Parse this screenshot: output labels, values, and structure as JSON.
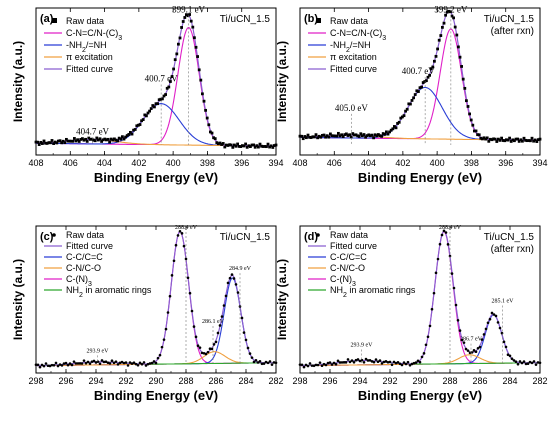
{
  "chart_data": [
    {
      "type": "line",
      "panel_label": "(a)",
      "sample": [
        "Ti/uCN_1.5"
      ],
      "xlabel": "Binding Energy (eV)",
      "ylabel": "Intensity (a.u.)",
      "xlim": [
        408,
        394
      ],
      "xticks": [
        408,
        406,
        404,
        402,
        400,
        398,
        396,
        394
      ],
      "legend": [
        "Raw data",
        "C-N=C/N-(C)3",
        "-NH2/=NH",
        "π excitation",
        "Fitted curve"
      ],
      "colors": {
        "raw": "#000000",
        "c1": "#e020c8",
        "c2": "#2b3fd6",
        "c3": "#f0a040",
        "fit": "#8a5fd0"
      },
      "baseline": {
        "y_start": 0.08,
        "y_end": 0.06
      },
      "peaks": [
        {
          "name": "C-N=C/N-(C)3",
          "center": 399.1,
          "height": 0.8,
          "sigma": 0.62
        },
        {
          "name": "-NH2/=NH",
          "center": 400.7,
          "height": 0.28,
          "sigma": 1.05
        },
        {
          "name": "π excitation",
          "center": 404.7,
          "height": 0.03,
          "sigma": 1.4
        }
      ],
      "annotations": [
        {
          "text": "399.1 eV",
          "x": 399.1,
          "y": 0.97
        },
        {
          "text": "400.7 eV",
          "x": 400.7,
          "y": 0.5
        },
        {
          "text": "404.7 eV",
          "x": 404.7,
          "y": 0.14
        }
      ]
    },
    {
      "type": "line",
      "panel_label": "(b)",
      "sample": [
        "Ti/uCN_1.5",
        "(after rxn)"
      ],
      "xlabel": "Binding Energy (eV)",
      "ylabel": "Intensity (a.u.)",
      "xlim": [
        408,
        394
      ],
      "xticks": [
        408,
        406,
        404,
        402,
        400,
        398,
        396,
        394
      ],
      "legend": [
        "Raw data",
        "C-N=C/N-(C)3",
        "-NH2/=NH",
        "π excitation",
        "Fitted curve"
      ],
      "colors": {
        "raw": "#000000",
        "c1": "#e020c8",
        "c2": "#2b3fd6",
        "c3": "#f0a040",
        "fit": "#8a5fd0"
      },
      "baseline": {
        "y_start": 0.12,
        "y_end": 0.1
      },
      "peaks": [
        {
          "name": "C-N=C/N-(C)3",
          "center": 399.2,
          "height": 0.75,
          "sigma": 0.62
        },
        {
          "name": "-NH2/=NH",
          "center": 400.7,
          "height": 0.35,
          "sigma": 1.0
        },
        {
          "name": "π excitation",
          "center": 405.0,
          "height": 0.02,
          "sigma": 1.4
        }
      ],
      "annotations": [
        {
          "text": "399.2 eV",
          "x": 399.2,
          "y": 0.97
        },
        {
          "text": "400.7 eV",
          "x": 401.1,
          "y": 0.55
        },
        {
          "text": "405.0 eV",
          "x": 405.0,
          "y": 0.3
        }
      ]
    },
    {
      "type": "line",
      "panel_label": "(c)",
      "sample": [
        "Ti/uCN_1.5"
      ],
      "xlabel": "Binding Energy (eV)",
      "ylabel": "Intensity (a.u.)",
      "xlim": [
        298,
        282
      ],
      "xticks": [
        298,
        296,
        294,
        292,
        290,
        288,
        286,
        284,
        282
      ],
      "legend": [
        "Raw data",
        "Fitted curve",
        "C-C/C=C",
        "C-N/C-O",
        "C-(N)3",
        "NH2 in aromatic rings"
      ],
      "colors": {
        "raw": "#000000",
        "fit": "#8a5fd0",
        "c1": "#2b3fd6",
        "c2": "#f0a040",
        "c3": "#e020c8",
        "c4": "#2ea82e"
      },
      "baseline": {
        "y_start": 0.05,
        "y_end": 0.07
      },
      "peaks": [
        {
          "name": "C-(N)3",
          "center": 288.4,
          "height": 0.9,
          "sigma": 0.58
        },
        {
          "name": "C-C/C=C",
          "center": 284.9,
          "height": 0.58,
          "sigma": 0.55
        },
        {
          "name": "C-N/C-O",
          "center": 286.1,
          "height": 0.08,
          "sigma": 0.7
        },
        {
          "name": "NH2 in aromatic rings",
          "center": 293.9,
          "height": 0.02,
          "sigma": 1.5
        }
      ],
      "annotations": [
        {
          "text": "288.4 eV",
          "x": 288.0,
          "y": 0.98
        },
        {
          "text": "284.9 eV",
          "x": 284.4,
          "y": 0.7
        },
        {
          "text": "286.1 eV",
          "x": 286.2,
          "y": 0.34
        },
        {
          "text": "293.9 eV",
          "x": 293.9,
          "y": 0.14
        }
      ]
    },
    {
      "type": "line",
      "panel_label": "(d)",
      "sample": [
        "Ti/uCN_1.5",
        "(after rxn)"
      ],
      "xlabel": "Binding Energy (eV)",
      "ylabel": "Intensity (a.u.)",
      "xlim": [
        298,
        282
      ],
      "xticks": [
        298,
        296,
        294,
        292,
        290,
        288,
        286,
        284,
        282
      ],
      "legend": [
        "Raw data",
        "Fitted curve",
        "C-C/C=C",
        "C-N/C-O",
        "C-(N)3",
        "NH2 in aromatic rings"
      ],
      "colors": {
        "raw": "#000000",
        "fit": "#8a5fd0",
        "c1": "#2b3fd6",
        "c2": "#f0a040",
        "c3": "#e020c8",
        "c4": "#2ea82e"
      },
      "baseline": {
        "y_start": 0.05,
        "y_end": 0.07
      },
      "peaks": [
        {
          "name": "C-(N)3",
          "center": 288.4,
          "height": 0.9,
          "sigma": 0.6
        },
        {
          "name": "C-C/C=C",
          "center": 285.1,
          "height": 0.33,
          "sigma": 0.55
        },
        {
          "name": "C-N/C-O",
          "center": 286.7,
          "height": 0.06,
          "sigma": 0.7
        },
        {
          "name": "NH2 in aromatic rings",
          "center": 293.9,
          "height": 0.03,
          "sigma": 1.5
        }
      ],
      "annotations": [
        {
          "text": "288.4 eV",
          "x": 288.0,
          "y": 0.98
        },
        {
          "text": "285.1 eV",
          "x": 284.5,
          "y": 0.48
        },
        {
          "text": "286.7 eV",
          "x": 286.6,
          "y": 0.22
        },
        {
          "text": "293.9 eV",
          "x": 293.9,
          "y": 0.18
        }
      ]
    }
  ]
}
